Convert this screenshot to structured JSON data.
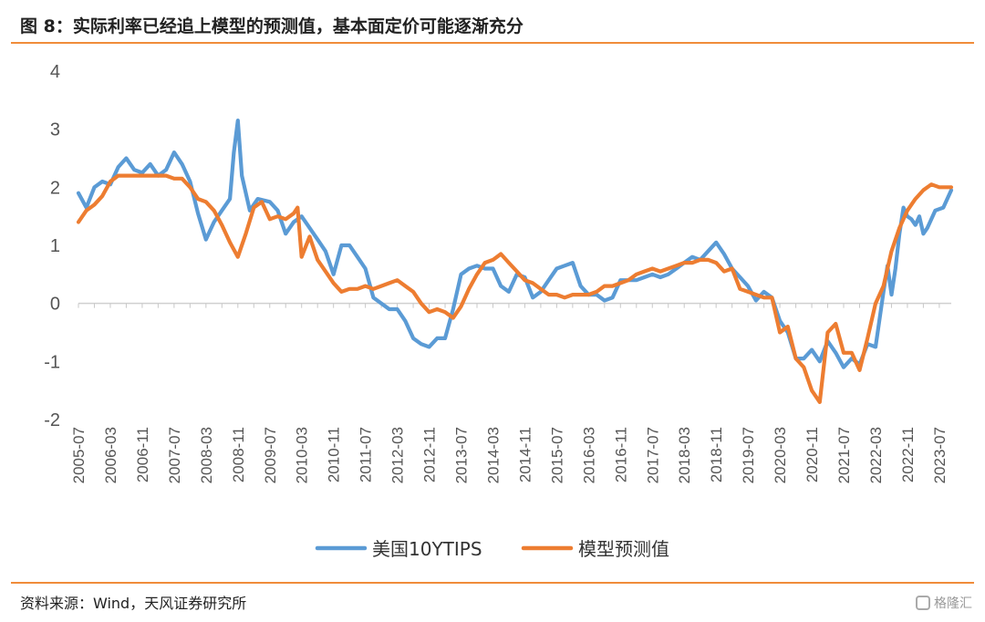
{
  "header": {
    "title": "图 8：实际利率已经追上模型的预测值，基本面定价可能逐渐充分"
  },
  "footer": {
    "source": "资料来源：Wind，天风证券研究所",
    "watermark": "格隆汇"
  },
  "colors": {
    "accent_rule": "#f08c3a",
    "series_tips": "#5b9bd5",
    "series_model": "#ed7d31"
  },
  "chart_data": {
    "type": "line",
    "title": "",
    "xlabel": "",
    "ylabel": "",
    "ylim": [
      -2,
      4
    ],
    "yticks": [
      "4",
      "3",
      "2",
      "1",
      "0",
      "-1",
      "-2"
    ],
    "x_tick_labels": [
      "2005-07",
      "2006-03",
      "2006-11",
      "2007-07",
      "2008-03",
      "2008-11",
      "2009-07",
      "2010-03",
      "2010-11",
      "2011-07",
      "2012-03",
      "2012-11",
      "2013-07",
      "2014-03",
      "2014-11",
      "2015-07",
      "2016-03",
      "2016-11",
      "2017-07",
      "2018-03",
      "2018-11",
      "2019-07",
      "2020-03",
      "2020-11",
      "2021-07",
      "2022-03",
      "2022-11",
      "2023-07"
    ],
    "x_range": [
      "2005-07",
      "2023-10"
    ],
    "grid": false,
    "legend_position": "bottom",
    "series": [
      {
        "name": "美国10YTIPS",
        "color": "#5b9bd5",
        "points": [
          [
            "2005-07",
            1.9
          ],
          [
            "2005-09",
            1.65
          ],
          [
            "2005-11",
            2.0
          ],
          [
            "2006-01",
            2.1
          ],
          [
            "2006-03",
            2.05
          ],
          [
            "2006-05",
            2.35
          ],
          [
            "2006-07",
            2.5
          ],
          [
            "2006-09",
            2.3
          ],
          [
            "2006-11",
            2.25
          ],
          [
            "2007-01",
            2.4
          ],
          [
            "2007-03",
            2.2
          ],
          [
            "2007-05",
            2.3
          ],
          [
            "2007-07",
            2.6
          ],
          [
            "2007-09",
            2.4
          ],
          [
            "2007-11",
            2.1
          ],
          [
            "2008-01",
            1.55
          ],
          [
            "2008-03",
            1.1
          ],
          [
            "2008-05",
            1.4
          ],
          [
            "2008-07",
            1.6
          ],
          [
            "2008-09",
            1.8
          ],
          [
            "2008-10",
            2.6
          ],
          [
            "2008-11",
            3.15
          ],
          [
            "2008-12",
            2.2
          ],
          [
            "2009-02",
            1.6
          ],
          [
            "2009-04",
            1.8
          ],
          [
            "2009-07",
            1.75
          ],
          [
            "2009-09",
            1.6
          ],
          [
            "2009-11",
            1.2
          ],
          [
            "2010-01",
            1.4
          ],
          [
            "2010-03",
            1.5
          ],
          [
            "2010-05",
            1.3
          ],
          [
            "2010-07",
            1.1
          ],
          [
            "2010-09",
            0.9
          ],
          [
            "2010-11",
            0.5
          ],
          [
            "2011-01",
            1.0
          ],
          [
            "2011-03",
            1.0
          ],
          [
            "2011-05",
            0.8
          ],
          [
            "2011-07",
            0.6
          ],
          [
            "2011-09",
            0.1
          ],
          [
            "2011-11",
            0.0
          ],
          [
            "2012-01",
            -0.1
          ],
          [
            "2012-03",
            -0.1
          ],
          [
            "2012-05",
            -0.3
          ],
          [
            "2012-07",
            -0.6
          ],
          [
            "2012-09",
            -0.7
          ],
          [
            "2012-11",
            -0.75
          ],
          [
            "2013-01",
            -0.6
          ],
          [
            "2013-03",
            -0.6
          ],
          [
            "2013-05",
            -0.1
          ],
          [
            "2013-07",
            0.5
          ],
          [
            "2013-09",
            0.6
          ],
          [
            "2013-11",
            0.65
          ],
          [
            "2014-01",
            0.6
          ],
          [
            "2014-03",
            0.6
          ],
          [
            "2014-05",
            0.3
          ],
          [
            "2014-07",
            0.2
          ],
          [
            "2014-09",
            0.5
          ],
          [
            "2014-11",
            0.45
          ],
          [
            "2015-01",
            0.1
          ],
          [
            "2015-03",
            0.2
          ],
          [
            "2015-05",
            0.4
          ],
          [
            "2015-07",
            0.6
          ],
          [
            "2015-09",
            0.65
          ],
          [
            "2015-11",
            0.7
          ],
          [
            "2016-01",
            0.3
          ],
          [
            "2016-03",
            0.15
          ],
          [
            "2016-05",
            0.15
          ],
          [
            "2016-07",
            0.05
          ],
          [
            "2016-09",
            0.1
          ],
          [
            "2016-11",
            0.4
          ],
          [
            "2017-01",
            0.4
          ],
          [
            "2017-03",
            0.4
          ],
          [
            "2017-05",
            0.45
          ],
          [
            "2017-07",
            0.5
          ],
          [
            "2017-09",
            0.45
          ],
          [
            "2017-11",
            0.5
          ],
          [
            "2018-01",
            0.6
          ],
          [
            "2018-03",
            0.7
          ],
          [
            "2018-05",
            0.8
          ],
          [
            "2018-07",
            0.75
          ],
          [
            "2018-09",
            0.9
          ],
          [
            "2018-11",
            1.05
          ],
          [
            "2019-01",
            0.85
          ],
          [
            "2019-03",
            0.6
          ],
          [
            "2019-05",
            0.45
          ],
          [
            "2019-07",
            0.3
          ],
          [
            "2019-09",
            0.05
          ],
          [
            "2019-11",
            0.2
          ],
          [
            "2020-01",
            0.1
          ],
          [
            "2020-03",
            -0.3
          ],
          [
            "2020-05",
            -0.5
          ],
          [
            "2020-07",
            -0.95
          ],
          [
            "2020-09",
            -0.95
          ],
          [
            "2020-11",
            -0.8
          ],
          [
            "2021-01",
            -1.0
          ],
          [
            "2021-03",
            -0.65
          ],
          [
            "2021-05",
            -0.85
          ],
          [
            "2021-07",
            -1.1
          ],
          [
            "2021-09",
            -0.95
          ],
          [
            "2021-11",
            -1.05
          ],
          [
            "2022-01",
            -0.7
          ],
          [
            "2022-03",
            -0.75
          ],
          [
            "2022-05",
            0.2
          ],
          [
            "2022-06",
            0.65
          ],
          [
            "2022-07",
            0.15
          ],
          [
            "2022-08",
            0.6
          ],
          [
            "2022-09",
            1.2
          ],
          [
            "2022-10",
            1.65
          ],
          [
            "2022-11",
            1.5
          ],
          [
            "2022-12",
            1.45
          ],
          [
            "2023-01",
            1.35
          ],
          [
            "2023-02",
            1.5
          ],
          [
            "2023-03",
            1.2
          ],
          [
            "2023-04",
            1.3
          ],
          [
            "2023-05",
            1.45
          ],
          [
            "2023-06",
            1.6
          ],
          [
            "2023-08",
            1.65
          ],
          [
            "2023-10",
            1.95
          ]
        ]
      },
      {
        "name": "模型预测值",
        "color": "#ed7d31",
        "points": [
          [
            "2005-07",
            1.4
          ],
          [
            "2005-09",
            1.6
          ],
          [
            "2005-11",
            1.7
          ],
          [
            "2006-01",
            1.85
          ],
          [
            "2006-03",
            2.1
          ],
          [
            "2006-05",
            2.2
          ],
          [
            "2006-07",
            2.2
          ],
          [
            "2006-09",
            2.2
          ],
          [
            "2006-11",
            2.2
          ],
          [
            "2007-01",
            2.2
          ],
          [
            "2007-03",
            2.2
          ],
          [
            "2007-05",
            2.2
          ],
          [
            "2007-07",
            2.15
          ],
          [
            "2007-09",
            2.15
          ],
          [
            "2007-11",
            2.0
          ],
          [
            "2008-01",
            1.8
          ],
          [
            "2008-03",
            1.75
          ],
          [
            "2008-05",
            1.6
          ],
          [
            "2008-07",
            1.35
          ],
          [
            "2008-09",
            1.05
          ],
          [
            "2008-11",
            0.8
          ],
          [
            "2009-01",
            1.2
          ],
          [
            "2009-03",
            1.65
          ],
          [
            "2009-05",
            1.75
          ],
          [
            "2009-07",
            1.45
          ],
          [
            "2009-09",
            1.5
          ],
          [
            "2009-11",
            1.45
          ],
          [
            "2010-01",
            1.55
          ],
          [
            "2010-02",
            1.65
          ],
          [
            "2010-03",
            0.8
          ],
          [
            "2010-05",
            1.15
          ],
          [
            "2010-07",
            0.75
          ],
          [
            "2010-09",
            0.55
          ],
          [
            "2010-11",
            0.35
          ],
          [
            "2011-01",
            0.2
          ],
          [
            "2011-03",
            0.25
          ],
          [
            "2011-05",
            0.25
          ],
          [
            "2011-07",
            0.3
          ],
          [
            "2011-09",
            0.25
          ],
          [
            "2011-11",
            0.3
          ],
          [
            "2012-01",
            0.35
          ],
          [
            "2012-03",
            0.4
          ],
          [
            "2012-05",
            0.3
          ],
          [
            "2012-07",
            0.2
          ],
          [
            "2012-09",
            0.0
          ],
          [
            "2012-11",
            -0.15
          ],
          [
            "2013-01",
            -0.1
          ],
          [
            "2013-03",
            -0.15
          ],
          [
            "2013-05",
            -0.25
          ],
          [
            "2013-07",
            -0.05
          ],
          [
            "2013-09",
            0.25
          ],
          [
            "2013-11",
            0.5
          ],
          [
            "2014-01",
            0.7
          ],
          [
            "2014-03",
            0.75
          ],
          [
            "2014-05",
            0.85
          ],
          [
            "2014-07",
            0.7
          ],
          [
            "2014-09",
            0.55
          ],
          [
            "2014-11",
            0.4
          ],
          [
            "2015-01",
            0.35
          ],
          [
            "2015-03",
            0.25
          ],
          [
            "2015-05",
            0.15
          ],
          [
            "2015-07",
            0.15
          ],
          [
            "2015-09",
            0.1
          ],
          [
            "2015-11",
            0.15
          ],
          [
            "2016-01",
            0.15
          ],
          [
            "2016-03",
            0.15
          ],
          [
            "2016-05",
            0.2
          ],
          [
            "2016-07",
            0.3
          ],
          [
            "2016-09",
            0.3
          ],
          [
            "2016-11",
            0.35
          ],
          [
            "2017-01",
            0.4
          ],
          [
            "2017-03",
            0.5
          ],
          [
            "2017-05",
            0.55
          ],
          [
            "2017-07",
            0.6
          ],
          [
            "2017-09",
            0.55
          ],
          [
            "2017-11",
            0.6
          ],
          [
            "2018-01",
            0.65
          ],
          [
            "2018-03",
            0.7
          ],
          [
            "2018-05",
            0.7
          ],
          [
            "2018-07",
            0.75
          ],
          [
            "2018-09",
            0.75
          ],
          [
            "2018-11",
            0.7
          ],
          [
            "2019-01",
            0.55
          ],
          [
            "2019-03",
            0.6
          ],
          [
            "2019-05",
            0.25
          ],
          [
            "2019-07",
            0.2
          ],
          [
            "2019-09",
            0.15
          ],
          [
            "2019-11",
            0.1
          ],
          [
            "2020-01",
            0.1
          ],
          [
            "2020-03",
            -0.5
          ],
          [
            "2020-05",
            -0.4
          ],
          [
            "2020-07",
            -0.95
          ],
          [
            "2020-09",
            -1.1
          ],
          [
            "2020-11",
            -1.5
          ],
          [
            "2021-01",
            -1.7
          ],
          [
            "2021-03",
            -0.5
          ],
          [
            "2021-05",
            -0.35
          ],
          [
            "2021-07",
            -0.85
          ],
          [
            "2021-09",
            -0.85
          ],
          [
            "2021-11",
            -1.15
          ],
          [
            "2022-01",
            -0.6
          ],
          [
            "2022-03",
            0.0
          ],
          [
            "2022-05",
            0.3
          ],
          [
            "2022-07",
            0.9
          ],
          [
            "2022-09",
            1.3
          ],
          [
            "2022-11",
            1.6
          ],
          [
            "2023-01",
            1.8
          ],
          [
            "2023-03",
            1.95
          ],
          [
            "2023-05",
            2.05
          ],
          [
            "2023-07",
            2.0
          ],
          [
            "2023-09",
            2.0
          ],
          [
            "2023-10",
            2.0
          ]
        ]
      }
    ]
  }
}
